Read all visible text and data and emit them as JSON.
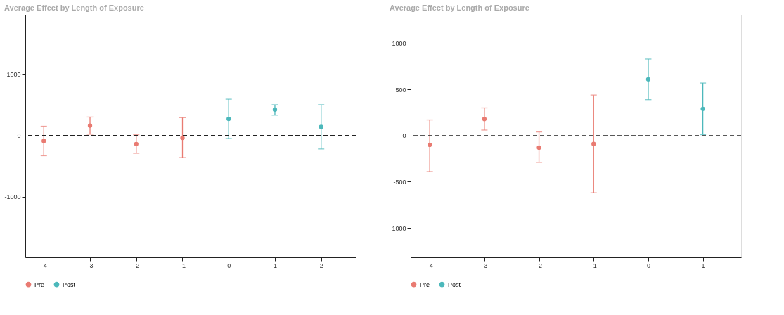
{
  "chart_data": [
    {
      "type": "scatter",
      "title": "Average Effect by Length of Exposure",
      "xlim": [
        -4.4,
        2.75
      ],
      "xticks": [
        -4,
        -3,
        -2,
        -1,
        0,
        1,
        2
      ],
      "ylim": [
        -1985,
        1965
      ],
      "yticks": [
        -1000,
        0,
        1000
      ],
      "grid": false,
      "legend": "bottom",
      "marker": "circle",
      "series": [
        {
          "name": "Pre",
          "color": "#e97b72",
          "x": [
            -4,
            -3,
            -2,
            -1
          ],
          "values": [
            -90,
            160,
            -140,
            -40
          ],
          "errors": [
            [
              -330,
              150
            ],
            [
              20,
              300
            ],
            [
              -290,
              10
            ],
            [
              -360,
              290
            ]
          ]
        },
        {
          "name": "Post",
          "color": "#4cb8bb",
          "x": [
            0,
            1,
            2
          ],
          "values": [
            270,
            420,
            140
          ],
          "errors": [
            [
              -50,
              590
            ],
            [
              330,
              500
            ],
            [
              -220,
              500
            ]
          ]
        }
      ],
      "ref_lines": [
        {
          "axis": "y",
          "value": 0,
          "line_style": "dashed",
          "color": "#222222"
        }
      ]
    },
    {
      "type": "scatter",
      "title": "Average Effect by Length of Exposure",
      "xlim": [
        -4.35,
        1.7
      ],
      "xticks": [
        -4,
        -3,
        -2,
        -1,
        0,
        1
      ],
      "ylim": [
        -1320,
        1310
      ],
      "yticks": [
        -1000,
        -500,
        0,
        500,
        1000
      ],
      "grid": false,
      "legend": "bottom",
      "marker": "circle",
      "series": [
        {
          "name": "Pre",
          "color": "#e97b72",
          "x": [
            -4,
            -3,
            -2,
            -1
          ],
          "values": [
            -100,
            180,
            -130,
            -90
          ],
          "errors": [
            [
              -390,
              170
            ],
            [
              60,
              300
            ],
            [
              -290,
              40
            ],
            [
              -620,
              440
            ]
          ]
        },
        {
          "name": "Post",
          "color": "#4cb8bb",
          "x": [
            0,
            1
          ],
          "values": [
            610,
            290
          ],
          "errors": [
            [
              390,
              830
            ],
            [
              10,
              570
            ]
          ]
        }
      ],
      "ref_lines": [
        {
          "axis": "y",
          "value": 0,
          "line_style": "dashed",
          "color": "#222222"
        }
      ]
    }
  ]
}
